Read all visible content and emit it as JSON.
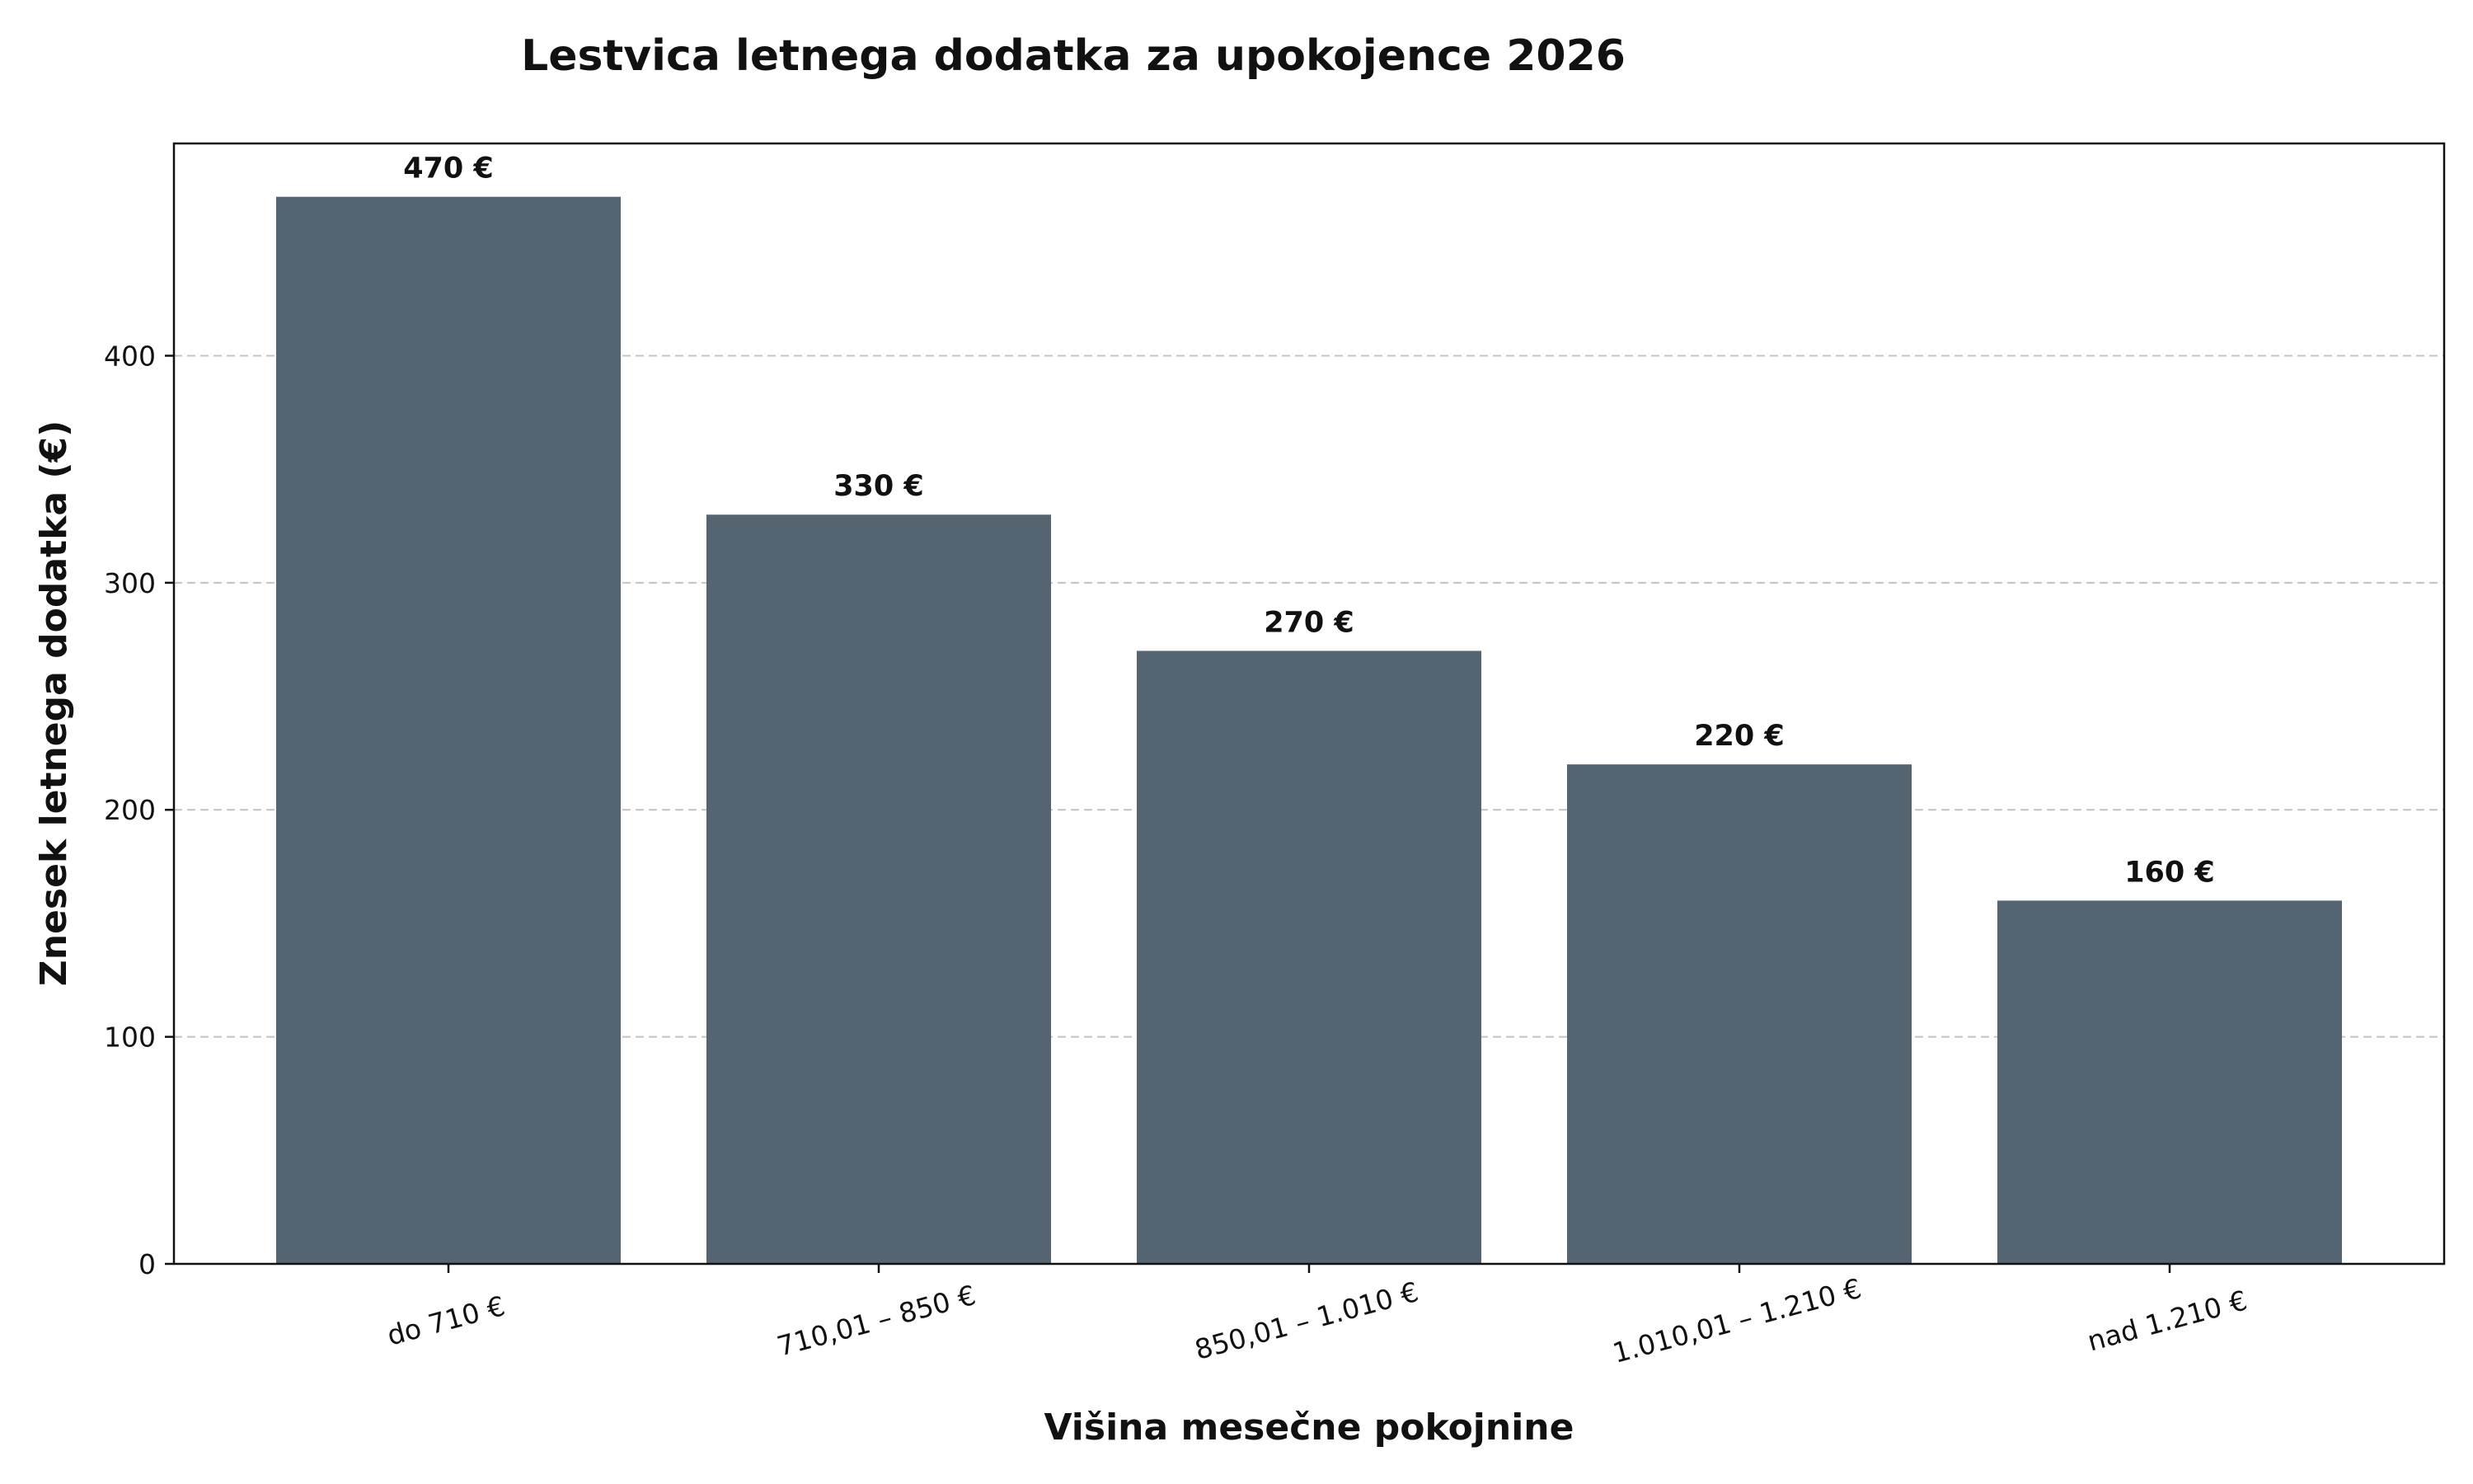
{
  "chart_data": {
    "type": "bar",
    "title": "Lestvica letnega dodatka za upokojence 2026",
    "xlabel": "Višina mesečne pokojnine",
    "ylabel": "Znesek letnega dodatka (€)",
    "categories": [
      "do 710 €",
      "710,01 – 850 €",
      "850,01 – 1.010 €",
      "1.010,01 – 1.210 €",
      "nad 1.210 €"
    ],
    "values": [
      470,
      330,
      270,
      220,
      160
    ],
    "value_labels": [
      "470 €",
      "330 €",
      "270 €",
      "220 €",
      "160 €"
    ],
    "ylim": [
      0,
      493.5
    ],
    "yticks": [
      0,
      100,
      200,
      300,
      400
    ],
    "grid": "y-dashed",
    "legend": "none",
    "bar_color": "#546471"
  }
}
